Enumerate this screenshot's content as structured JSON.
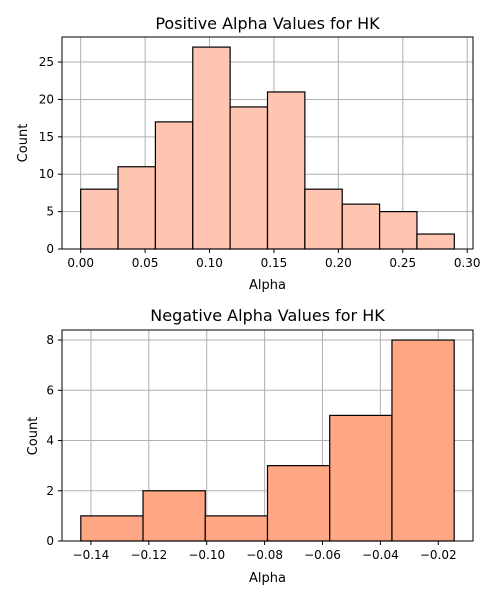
{
  "colors": {
    "top_bar_fill": "#ffc5b0",
    "bottom_bar_fill": "#ffa785",
    "bar_edge": "#000000",
    "grid": "#b0b0b0",
    "background": "#ffffff"
  },
  "chart_data": [
    {
      "type": "bar",
      "title": "Positive Alpha Values for HK",
      "xlabel": "Alpha",
      "ylabel": "Count",
      "grid": true,
      "bins": [
        {
          "x0": 0.0,
          "x1": 0.029,
          "count": 8
        },
        {
          "x0": 0.029,
          "x1": 0.058,
          "count": 11
        },
        {
          "x0": 0.058,
          "x1": 0.087,
          "count": 17
        },
        {
          "x0": 0.087,
          "x1": 0.116,
          "count": 27
        },
        {
          "x0": 0.116,
          "x1": 0.145,
          "count": 19
        },
        {
          "x0": 0.145,
          "x1": 0.174,
          "count": 21
        },
        {
          "x0": 0.174,
          "x1": 0.203,
          "count": 8
        },
        {
          "x0": 0.203,
          "x1": 0.232,
          "count": 6
        },
        {
          "x0": 0.232,
          "x1": 0.261,
          "count": 5
        },
        {
          "x0": 0.261,
          "x1": 0.29,
          "count": 2
        }
      ],
      "xlim": [
        -0.0145,
        0.3045
      ],
      "ylim": [
        0,
        28.35
      ],
      "xticks": [
        0.0,
        0.05,
        0.1,
        0.15,
        0.2,
        0.25,
        0.3
      ],
      "xtick_labels": [
        "0.00",
        "0.05",
        "0.10",
        "0.15",
        "0.20",
        "0.25",
        "0.30"
      ],
      "yticks": [
        0,
        5,
        10,
        15,
        20,
        25
      ],
      "ytick_labels": [
        "0",
        "5",
        "10",
        "15",
        "20",
        "25"
      ]
    },
    {
      "type": "bar",
      "title": "Negative Alpha Values for HK",
      "xlabel": "Alpha",
      "ylabel": "Count",
      "grid": true,
      "bins": [
        {
          "x0": -0.1435,
          "x1": -0.122,
          "count": 1
        },
        {
          "x0": -0.122,
          "x1": -0.1005,
          "count": 2
        },
        {
          "x0": -0.1005,
          "x1": -0.079,
          "count": 1
        },
        {
          "x0": -0.079,
          "x1": -0.0575,
          "count": 3
        },
        {
          "x0": -0.0575,
          "x1": -0.036,
          "count": 5
        },
        {
          "x0": -0.036,
          "x1": -0.0145,
          "count": 8
        }
      ],
      "xlim": [
        -0.15,
        -0.008
      ],
      "ylim": [
        0,
        8.4
      ],
      "xticks": [
        -0.14,
        -0.12,
        -0.1,
        -0.08,
        -0.06,
        -0.04,
        -0.02
      ],
      "xtick_labels": [
        "−0.14",
        "−0.12",
        "−0.10",
        "−0.08",
        "−0.06",
        "−0.04",
        "−0.02"
      ],
      "yticks": [
        0,
        2,
        4,
        6,
        8
      ],
      "ytick_labels": [
        "0",
        "2",
        "4",
        "6",
        "8"
      ]
    }
  ]
}
